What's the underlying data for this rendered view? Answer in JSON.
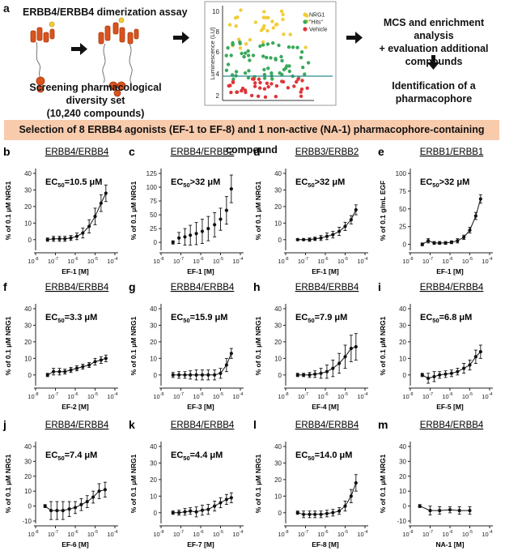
{
  "panel_a": {
    "letter": "a",
    "assay_title": "ERBB4/ERBB4 dimerization assay",
    "screen_line1": "Screening pharmacological diversity set",
    "screen_line2": "(10,240 compounds)",
    "mcs_line1": "MCS and enrichment analysis",
    "mcs_line2": "+ evaluation additional",
    "mcs_line3": "compounds",
    "ident_line1": "Identification of a",
    "ident_line2": "pharmacophore",
    "scatter": {
      "ylabel": "Luminescence (LU)",
      "yticks": [
        "2",
        "4",
        "6",
        "8",
        "10"
      ],
      "legend": [
        {
          "label": "NRG1",
          "color": "#f2cc3a"
        },
        {
          "label": "\"Hits\"",
          "color": "#3aaa5c"
        },
        {
          "label": "Vehicle",
          "color": "#e0353a"
        }
      ]
    }
  },
  "banner": "Selection of 8 ERBB4 agonists (EF-1 to EF-8) and 1 non-active (NA-1) pharmacophore-containing compound",
  "colors": {
    "banner_bg": "#f8cbad",
    "protein": "#d9531e",
    "curve": "#111111"
  },
  "chart_data": [
    {
      "letter": "b",
      "type": "line",
      "title": "ERBB4/ERBB4",
      "ec50": "10.5 μM",
      "xlabel": "EF-1 [M]",
      "ylabel": "% of 0.1 μM NRG1",
      "ylim": [
        -5,
        40
      ],
      "yticks": [
        0,
        10,
        20,
        30,
        40
      ],
      "x": [
        4e-08,
        8e-08,
        1.6e-07,
        3e-07,
        6e-07,
        1.2e-06,
        2.4e-06,
        5e-06,
        1e-05,
        2e-05,
        3.5e-05
      ],
      "y": [
        0,
        0.5,
        0.5,
        0.5,
        1,
        2,
        4,
        8,
        14,
        22,
        28
      ],
      "err": [
        1,
        1.5,
        1.5,
        1.5,
        1.5,
        2,
        3,
        4,
        5,
        5,
        5
      ],
      "fit": true
    },
    {
      "letter": "c",
      "type": "line",
      "title": "ERBB4/ERBB2",
      "ec50": ">32 μM",
      "xlabel": "EF-1 [M]",
      "ylabel": "% of 0.1 μM NRG1",
      "ylim": [
        -10,
        125
      ],
      "yticks": [
        0,
        25,
        50,
        75,
        100,
        125
      ],
      "x": [
        4e-08,
        8e-08,
        1.6e-07,
        3e-07,
        6e-07,
        1.2e-06,
        2.4e-06,
        5e-06,
        1e-05,
        2e-05,
        3.5e-05
      ],
      "y": [
        0,
        8,
        10,
        13,
        16,
        20,
        25,
        32,
        42,
        58,
        97
      ],
      "err": [
        3,
        10,
        15,
        18,
        20,
        22,
        22,
        22,
        20,
        25,
        25
      ],
      "fit": false
    },
    {
      "letter": "d",
      "type": "line",
      "title": "ERBB3/ERBB2",
      "ec50": ">32 μM",
      "xlabel": "EF-1 [M]",
      "ylabel": "% of 0.1 μM NRG1",
      "ylim": [
        -5,
        40
      ],
      "yticks": [
        0,
        10,
        20,
        30,
        40
      ],
      "x": [
        4e-08,
        8e-08,
        1.6e-07,
        3e-07,
        6e-07,
        1.2e-06,
        2.4e-06,
        5e-06,
        1e-05,
        2e-05,
        3.5e-05
      ],
      "y": [
        0,
        0,
        0,
        0.5,
        1,
        2,
        3,
        5,
        8,
        12,
        18
      ],
      "err": [
        0.5,
        0.5,
        1,
        1,
        1.5,
        2,
        2,
        2.5,
        2.5,
        2.5,
        3
      ],
      "fit": true
    },
    {
      "letter": "e",
      "type": "line",
      "title": "ERBB1/ERBB1",
      "ec50": ">32 μM",
      "xlabel": "EF-1 [M]",
      "ylabel": "% of 0.1 g/mL EGF",
      "ylim": [
        -5,
        100
      ],
      "yticks": [
        0,
        25,
        50,
        75,
        100
      ],
      "x": [
        4e-08,
        8e-08,
        1.6e-07,
        3e-07,
        6e-07,
        1.2e-06,
        2.4e-06,
        5e-06,
        1e-05,
        2e-05,
        3.5e-05
      ],
      "y": [
        0,
        5,
        2,
        2,
        2,
        3,
        5,
        10,
        20,
        40,
        64
      ],
      "err": [
        2,
        3,
        2,
        2,
        2,
        2,
        3,
        3,
        4,
        5,
        6
      ],
      "fit": true
    },
    {
      "letter": "f",
      "type": "line",
      "title": "ERBB4/ERBB4",
      "ec50": "3.3 μM",
      "xlabel": "EF-2 [M]",
      "ylabel": "% of 0.1 μM NRG1",
      "ylim": [
        -5,
        40
      ],
      "yticks": [
        0,
        10,
        20,
        30,
        40
      ],
      "x": [
        4e-08,
        8e-08,
        1.6e-07,
        3e-07,
        6e-07,
        1.2e-06,
        2.4e-06,
        5e-06,
        1e-05,
        2e-05,
        3.5e-05
      ],
      "y": [
        0,
        2,
        2,
        2,
        3,
        4,
        5,
        6,
        8,
        9,
        10
      ],
      "err": [
        1,
        2,
        2,
        1.5,
        1.5,
        1.5,
        1.5,
        1.5,
        2,
        2,
        2
      ],
      "fit": true
    },
    {
      "letter": "g",
      "type": "line",
      "title": "ERBB4/ERBB4",
      "ec50": "15.9 μM",
      "xlabel": "EF-3 [M]",
      "ylabel": "% of 0.1 μM NRG1",
      "ylim": [
        -5,
        40
      ],
      "yticks": [
        0,
        10,
        20,
        30,
        40
      ],
      "x": [
        4e-08,
        8e-08,
        1.6e-07,
        3e-07,
        6e-07,
        1.2e-06,
        2.4e-06,
        5e-06,
        1e-05,
        2e-05,
        3.5e-05
      ],
      "y": [
        0,
        0,
        0,
        0,
        0,
        0,
        0,
        0,
        1,
        6,
        13
      ],
      "err": [
        1.5,
        2,
        2,
        2.5,
        3,
        3,
        3,
        3,
        3,
        4,
        3
      ],
      "fit": true
    },
    {
      "letter": "h",
      "type": "line",
      "title": "ERBB4/ERBB4",
      "ec50": "7.9 μM",
      "xlabel": "EF-4 [M]",
      "ylabel": "% of 0.1 μM NRG1",
      "ylim": [
        -5,
        40
      ],
      "yticks": [
        0,
        10,
        20,
        30,
        40
      ],
      "x": [
        4e-08,
        8e-08,
        1.6e-07,
        3e-07,
        6e-07,
        1.2e-06,
        2.4e-06,
        5e-06,
        1e-05,
        2e-05,
        3.5e-05
      ],
      "y": [
        0,
        0,
        0,
        0.5,
        1,
        2,
        4,
        7,
        11,
        16,
        17
      ],
      "err": [
        1,
        1,
        1.5,
        2,
        3,
        4,
        5,
        6,
        7,
        8,
        8
      ],
      "fit": true
    },
    {
      "letter": "i",
      "type": "line",
      "title": "ERBB4/ERBB4",
      "ec50": "6.8 μM",
      "xlabel": "EF-5 [M]",
      "ylabel": "% of 0.1 μM NRG1",
      "ylim": [
        -5,
        40
      ],
      "yticks": [
        0,
        10,
        20,
        30,
        40
      ],
      "x": [
        4e-08,
        8e-08,
        1.6e-07,
        3e-07,
        6e-07,
        1.2e-06,
        2.4e-06,
        5e-06,
        1e-05,
        2e-05,
        3.5e-05
      ],
      "y": [
        0,
        -2,
        -1,
        0,
        0.5,
        1,
        2,
        4,
        6,
        11,
        14
      ],
      "err": [
        1,
        3,
        3,
        2,
        2,
        2,
        2,
        3,
        3,
        4,
        4
      ],
      "fit": true
    },
    {
      "letter": "j",
      "type": "line",
      "title": "ERBB4/ERBB4",
      "ec50": "7.4 μM",
      "xlabel": "EF-6 [M]",
      "ylabel": "% of 0.1 μM NRG1",
      "ylim": [
        -10,
        40
      ],
      "yticks": [
        -10,
        0,
        10,
        20,
        30,
        40
      ],
      "x": [
        3e-08,
        6e-08,
        1.2e-07,
        2.4e-07,
        5e-07,
        1e-06,
        2e-06,
        4e-06,
        8e-06,
        1.6e-05,
        3.2e-05
      ],
      "y": [
        0,
        -3,
        -3,
        -3,
        -2,
        -1,
        1,
        3,
        6,
        10,
        11
      ],
      "err": [
        1,
        6,
        6,
        6,
        5,
        4,
        4,
        4,
        4,
        5,
        5
      ],
      "fit": true
    },
    {
      "letter": "k",
      "type": "line",
      "title": "ERBB4/ERBB4",
      "ec50": "4.4 μM",
      "xlabel": "EF-7 [M]",
      "ylabel": "% of 0.1 μM NRG1",
      "ylim": [
        -5,
        40
      ],
      "yticks": [
        0,
        10,
        20,
        30,
        40
      ],
      "x": [
        4e-08,
        8e-08,
        1.6e-07,
        3e-07,
        6e-07,
        1.2e-06,
        2.4e-06,
        5e-06,
        1e-05,
        2e-05,
        3.5e-05
      ],
      "y": [
        0,
        0,
        0.5,
        1,
        0.5,
        1.5,
        2,
        4,
        6,
        8,
        9
      ],
      "err": [
        1,
        1.5,
        2,
        2,
        3,
        3,
        3,
        3,
        3,
        3,
        3
      ],
      "fit": true
    },
    {
      "letter": "l",
      "type": "line",
      "title": "ERBB4/ERBB4",
      "ec50": "14.0 μM",
      "xlabel": "EF-8 [M]",
      "ylabel": "% of 0.1 μM NRG1",
      "ylim": [
        -5,
        40
      ],
      "yticks": [
        0,
        10,
        20,
        30,
        40
      ],
      "x": [
        4e-08,
        8e-08,
        1.6e-07,
        3e-07,
        6e-07,
        1.2e-06,
        2.4e-06,
        5e-06,
        1e-05,
        2e-05,
        3.5e-05
      ],
      "y": [
        0,
        -1,
        -1,
        -1,
        -1,
        -0.5,
        0,
        1,
        4,
        10,
        18
      ],
      "err": [
        1,
        2,
        2,
        2,
        2,
        2,
        2,
        2,
        3,
        4,
        5
      ],
      "fit": true
    },
    {
      "letter": "m",
      "type": "line",
      "title": "ERBB4/ERBB4",
      "ec50": "",
      "xlabel": "NA-1 [M]",
      "ylabel": "% of 0.1 μM NRG1",
      "ylim": [
        -10,
        40
      ],
      "yticks": [
        -10,
        0,
        10,
        20,
        30,
        40
      ],
      "x": [
        3e-08,
        1e-07,
        3e-07,
        1e-06,
        3e-06,
        1e-05
      ],
      "y": [
        0,
        -3,
        -3,
        -2.5,
        -3,
        -3
      ],
      "err": [
        1,
        3,
        2.5,
        2,
        2.5,
        2.5
      ],
      "fit": true
    }
  ],
  "xtick_labels": [
    "10",
    "10",
    "10",
    "10",
    "10"
  ],
  "xtick_exps": [
    "-8",
    "-7",
    "-6",
    "-5",
    "-4"
  ]
}
